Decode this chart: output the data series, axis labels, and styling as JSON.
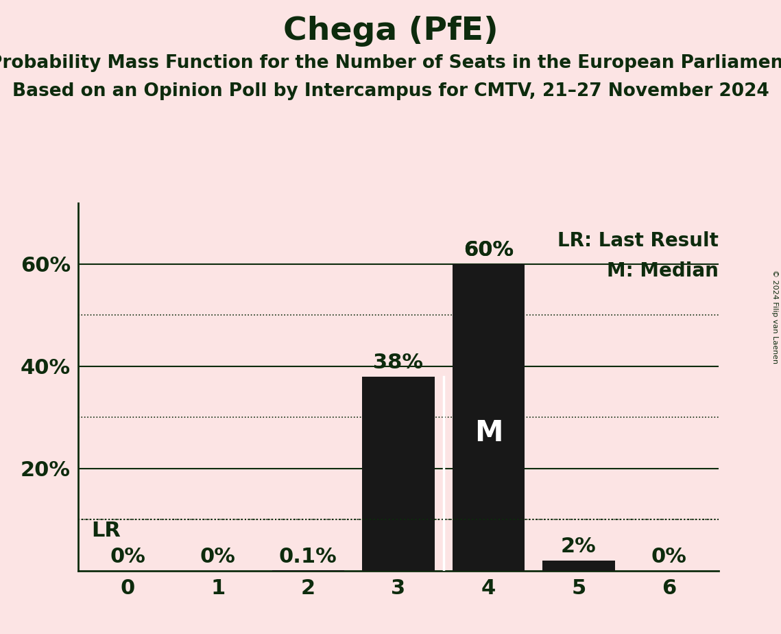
{
  "title": "Chega (PfE)",
  "subtitle1": "Probability Mass Function for the Number of Seats in the European Parliament",
  "subtitle2": "Based on an Opinion Poll by Intercampus for CMTV, 21–27 November 2024",
  "copyright": "© 2024 Filip van Laenen",
  "categories": [
    0,
    1,
    2,
    3,
    4,
    5,
    6
  ],
  "values": [
    0.0,
    0.0,
    0.001,
    0.38,
    0.6,
    0.02,
    0.0
  ],
  "bar_labels": [
    "0%",
    "0%",
    "0.1%",
    "38%",
    "60%",
    "2%",
    "0%"
  ],
  "bar_color": "#181818",
  "background_color": "#fce4e4",
  "text_color": "#0d2b0d",
  "title_fontsize": 34,
  "subtitle_fontsize": 19,
  "label_fontsize": 22,
  "tick_fontsize": 22,
  "legend_fontsize": 20,
  "median_seat": 4,
  "lr_value": 0.1,
  "lr_label": "LR",
  "legend_lr": "LR: Last Result",
  "legend_m": "M: Median",
  "ylim": [
    0,
    0.72
  ],
  "yticks": [
    0.2,
    0.4,
    0.6
  ],
  "ytick_labels": [
    "20%",
    "40%",
    "60%"
  ],
  "dotted_grid": [
    0.1,
    0.3,
    0.5
  ],
  "solid_grid": [
    0.2,
    0.4,
    0.6
  ]
}
